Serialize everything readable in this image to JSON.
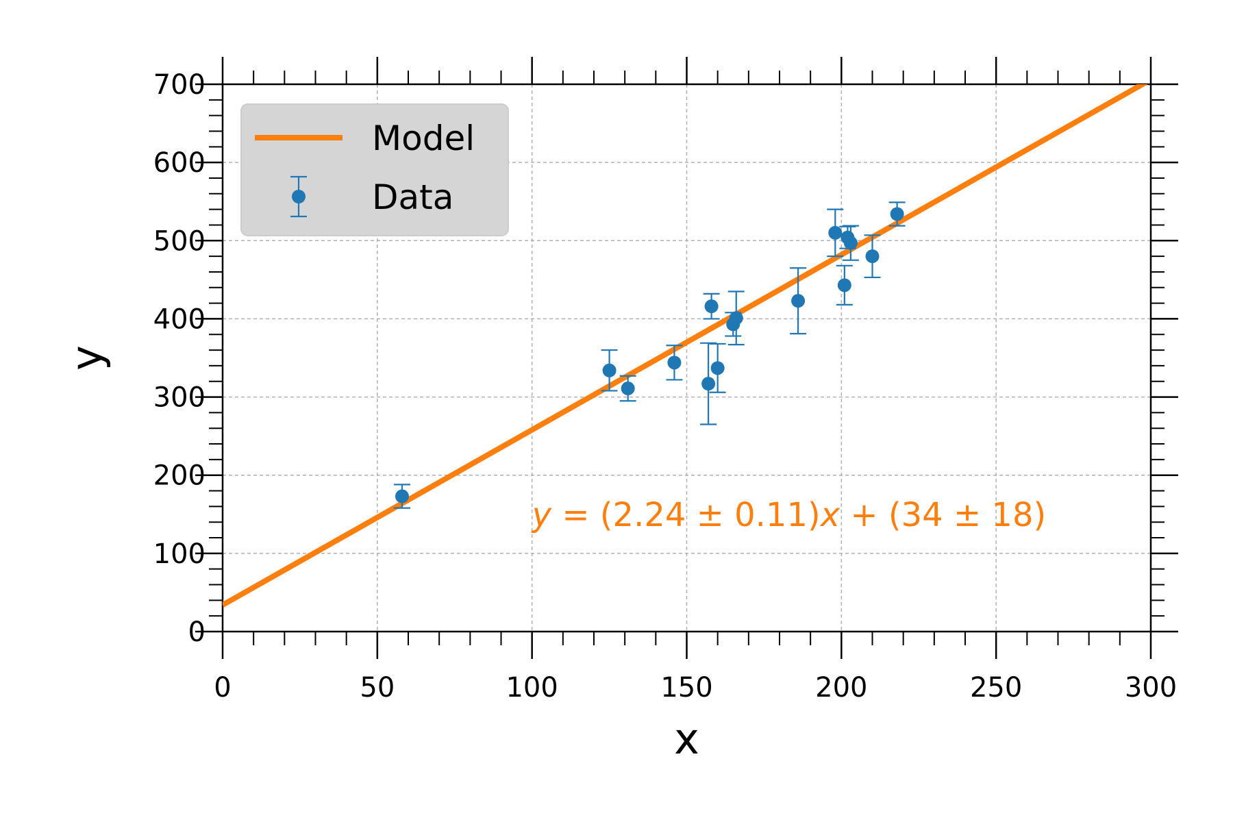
{
  "chart_data": {
    "type": "scatter",
    "xlabel": "x",
    "ylabel": "y",
    "xlim": [
      0,
      300
    ],
    "ylim": [
      0,
      700
    ],
    "x_ticks": [
      0,
      50,
      100,
      150,
      200,
      250,
      300
    ],
    "y_ticks": [
      0,
      100,
      200,
      300,
      400,
      500,
      600,
      700
    ],
    "grid": true,
    "legend_position": "top-left",
    "series": [
      {
        "name": "Model",
        "kind": "line",
        "color": "#ff7f0e",
        "slope": 2.24,
        "intercept": 34,
        "x_range": [
          0,
          300
        ]
      },
      {
        "name": "Data",
        "kind": "errorbar",
        "color": "#1f77b4",
        "points": [
          {
            "x": 58,
            "y": 173,
            "err": 15
          },
          {
            "x": 125,
            "y": 334,
            "err": 26
          },
          {
            "x": 131,
            "y": 311,
            "err": 16
          },
          {
            "x": 146,
            "y": 344,
            "err": 22
          },
          {
            "x": 157,
            "y": 317,
            "err": 52
          },
          {
            "x": 158,
            "y": 416,
            "err": 16
          },
          {
            "x": 160,
            "y": 337,
            "err": 31
          },
          {
            "x": 165,
            "y": 393,
            "err": 15
          },
          {
            "x": 166,
            "y": 401,
            "err": 34
          },
          {
            "x": 186,
            "y": 423,
            "err": 42
          },
          {
            "x": 198,
            "y": 510,
            "err": 30
          },
          {
            "x": 201,
            "y": 443,
            "err": 25
          },
          {
            "x": 202,
            "y": 504,
            "err": 14
          },
          {
            "x": 203,
            "y": 497,
            "err": 22
          },
          {
            "x": 210,
            "y": 480,
            "err": 27
          },
          {
            "x": 218,
            "y": 534,
            "err": 15
          }
        ]
      }
    ],
    "annotation": {
      "parts": [
        {
          "text": "y",
          "italic": true
        },
        {
          "text": " = (2.24 ± 0.11)",
          "italic": false
        },
        {
          "text": "x",
          "italic": true
        },
        {
          "text": " + (34 ± 18)",
          "italic": false
        }
      ],
      "color": "#ff7f0e",
      "x": 100,
      "y": 150
    }
  }
}
